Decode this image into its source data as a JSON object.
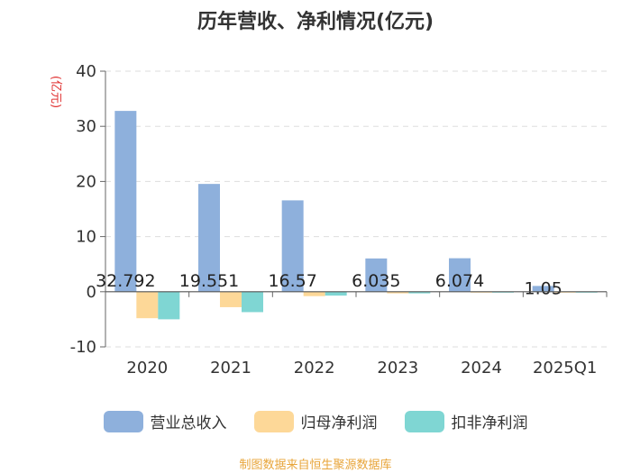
{
  "chart_data": {
    "type": "bar",
    "title": "历年营收、净利情况(亿元)",
    "ylabel": "(亿元)",
    "xlabel": "",
    "categories": [
      "2020",
      "2021",
      "2022",
      "2023",
      "2024",
      "2025Q1"
    ],
    "ylim": [
      -10,
      40
    ],
    "yticks": [
      -10,
      0,
      10,
      20,
      30,
      40
    ],
    "grid": true,
    "legend_position": "bottom",
    "series": [
      {
        "name": "营业总收入",
        "color": "#8eb0dc",
        "values": [
          32.792,
          19.551,
          16.57,
          6.035,
          6.074,
          1.05
        ]
      },
      {
        "name": "归母净利润",
        "color": "#fdd898",
        "values": [
          -4.8,
          -2.8,
          -0.8,
          -0.3,
          -0.1,
          -0.05
        ]
      },
      {
        "name": "扣非净利润",
        "color": "#7fd6d3",
        "values": [
          -5.0,
          -3.7,
          -0.7,
          -0.3,
          -0.1,
          -0.05
        ]
      }
    ],
    "data_labels": [
      "32.792",
      "19.551",
      "16.57",
      "6.035",
      "6.074",
      "1.05"
    ]
  },
  "footer": {
    "source": "制图数据来自恒生聚源数据库"
  }
}
